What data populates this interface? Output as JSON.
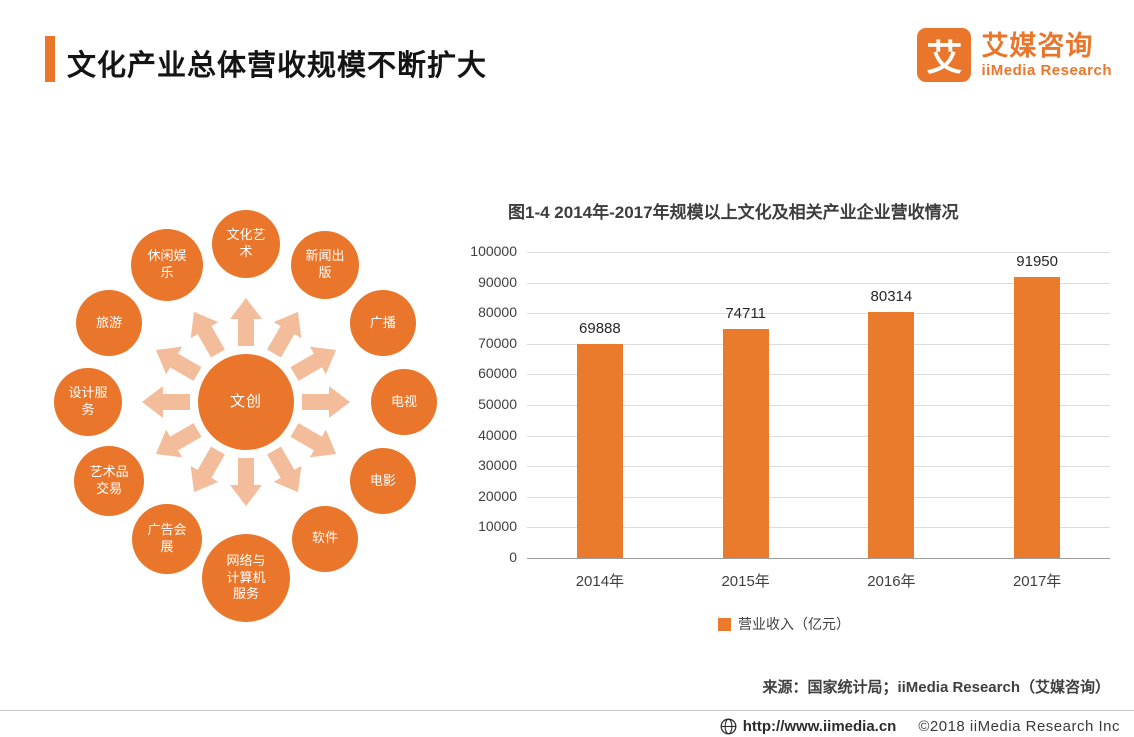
{
  "header": {
    "title": "文化产业总体营收规模不断扩大",
    "logo": {
      "glyph": "艾",
      "brand_cn": "艾媒咨询",
      "brand_en": "iiMedia Research"
    }
  },
  "diagram": {
    "center_label": "文创",
    "satellites": [
      {
        "label": "文化艺\n术"
      },
      {
        "label": "新闻出\n版"
      },
      {
        "label": "广播"
      },
      {
        "label": "电视"
      },
      {
        "label": "电影"
      },
      {
        "label": "软件"
      },
      {
        "label": "网络与\n计算机\n服务"
      },
      {
        "label": "广告会\n展"
      },
      {
        "label": "艺术品\n交易"
      },
      {
        "label": "设计服\n务"
      },
      {
        "label": "旅游"
      },
      {
        "label": "休闲娱\n乐"
      }
    ]
  },
  "chart_data": {
    "type": "bar",
    "title": "图1-4 2014年-2017年规模以上文化及相关产业企业营收情况",
    "categories": [
      "2014年",
      "2015年",
      "2016年",
      "2017年"
    ],
    "values": [
      69888,
      74711,
      80314,
      91950
    ],
    "ylim": [
      0,
      100000
    ],
    "ytick_step": 10000,
    "legend": [
      "营业收入（亿元）"
    ],
    "bar_color": "#EB7B2C",
    "grid": true,
    "legend_position": "bottom"
  },
  "chart": {
    "source": "来源：国家统计局；iiMedia Research（艾媒咨询）"
  },
  "footer": {
    "url": "http://www.iimedia.cn",
    "copyright": "©2018  iiMedia Research Inc"
  },
  "colors": {
    "accent": "#E9762B",
    "arrow_light": "#F3BD9C"
  },
  "icons": {
    "globe": "css-svg-globe"
  }
}
